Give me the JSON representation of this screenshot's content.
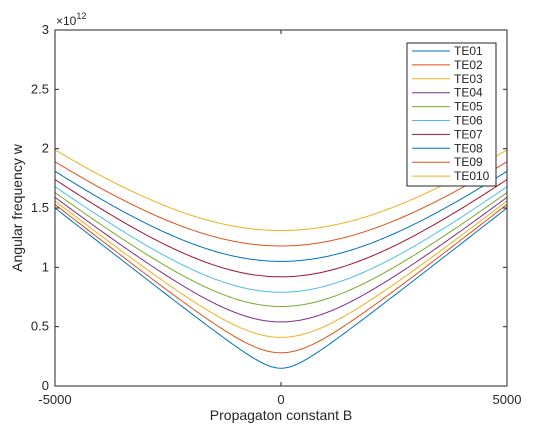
{
  "chart_data": {
    "type": "line",
    "xlabel": "Propagaton constant B",
    "ylabel": "Angular frequency w",
    "y_exponent_label": {
      "base": "×10",
      "power": "12"
    },
    "xlim": [
      -5000,
      5000
    ],
    "ylim": [
      0,
      3
    ],
    "x_ticks": [
      -5000,
      0,
      5000
    ],
    "y_ticks": [
      0,
      0.5,
      1,
      1.5,
      2,
      2.5,
      3
    ],
    "grid": false,
    "legend_position": "top-right",
    "series": [
      {
        "name": "TE01",
        "color": "#0072BD",
        "y_at_0": 0.15,
        "y_at_edge": 1.5
      },
      {
        "name": "TE02",
        "color": "#D95319",
        "y_at_0": 0.28,
        "y_at_edge": 1.53
      },
      {
        "name": "TE03",
        "color": "#EDB120",
        "y_at_0": 0.41,
        "y_at_edge": 1.56
      },
      {
        "name": "TE04",
        "color": "#7E2F8E",
        "y_at_0": 0.54,
        "y_at_edge": 1.59
      },
      {
        "name": "TE05",
        "color": "#77AC30",
        "y_at_0": 0.67,
        "y_at_edge": 1.63
      },
      {
        "name": "TE06",
        "color": "#4DBEEE",
        "y_at_0": 0.79,
        "y_at_edge": 1.68
      },
      {
        "name": "TE07",
        "color": "#A2142F",
        "y_at_0": 0.92,
        "y_at_edge": 1.74
      },
      {
        "name": "TE08",
        "color": "#0072BD",
        "y_at_0": 1.05,
        "y_at_edge": 1.81
      },
      {
        "name": "TE09",
        "color": "#D95319",
        "y_at_0": 1.18,
        "y_at_edge": 1.89
      },
      {
        "name": "TE010",
        "color": "#EDB120",
        "y_at_0": 1.31,
        "y_at_edge": 1.99
      }
    ]
  }
}
